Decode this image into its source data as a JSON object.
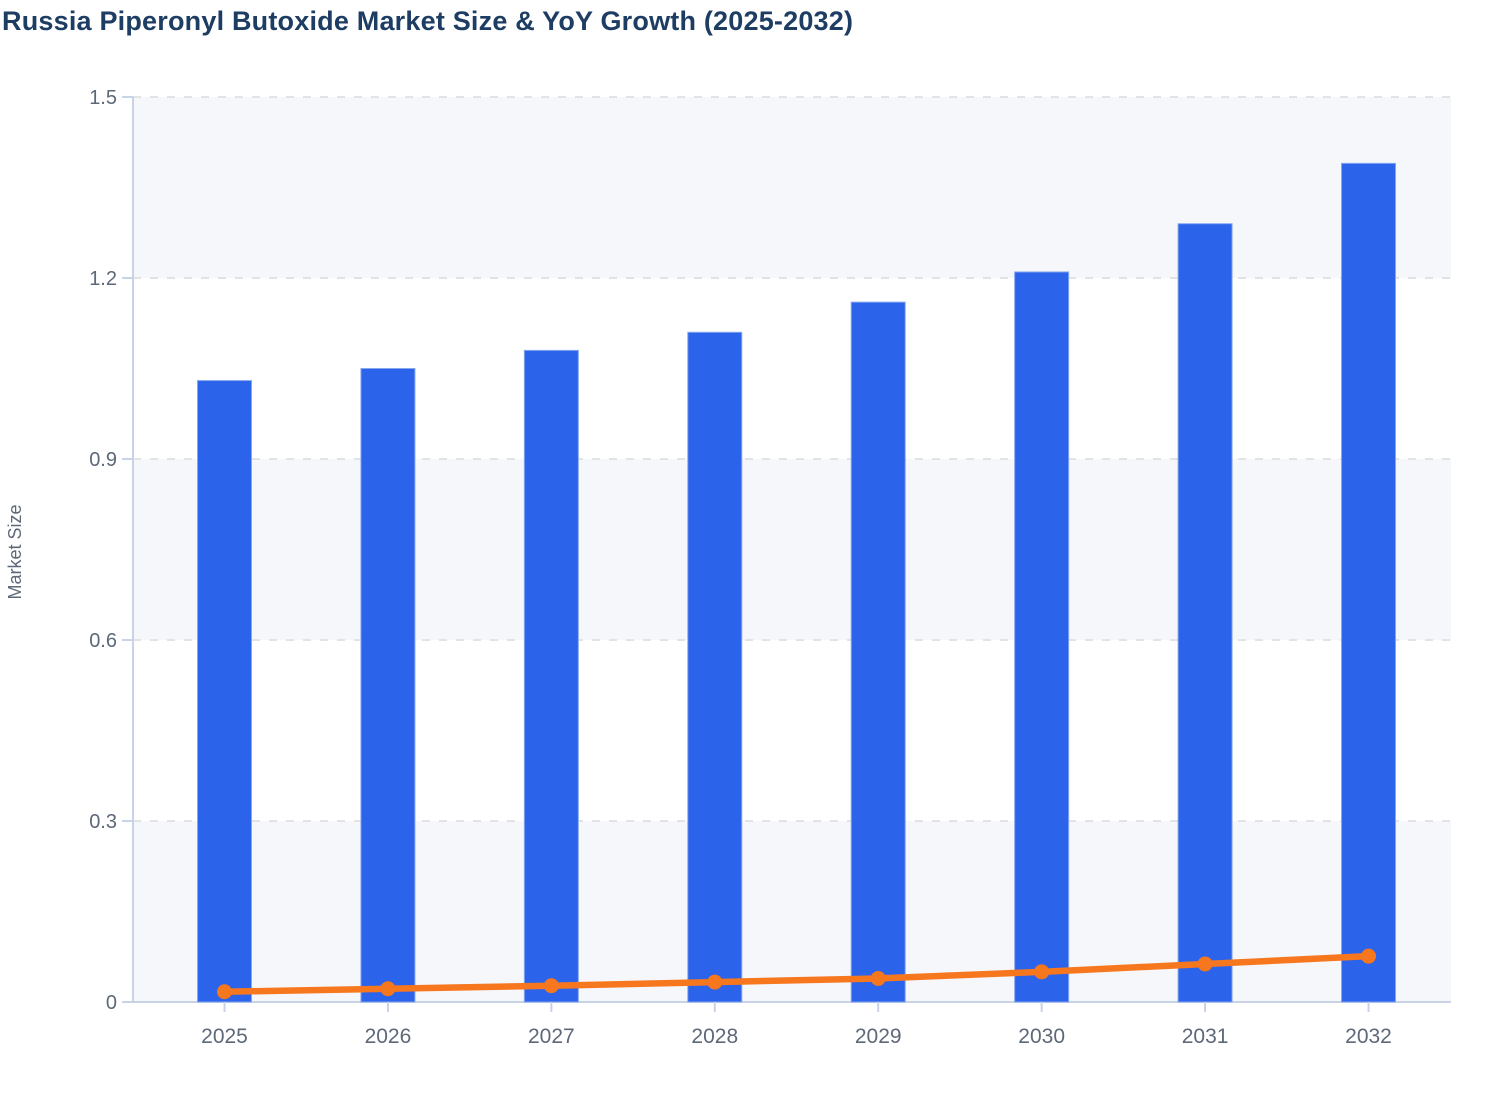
{
  "chart_data": {
    "type": "combo-bar-line",
    "title": "Russia Piperonyl Butoxide Market Size & YoY Growth (2025-2032)",
    "ylabel": "Market Size",
    "xlabel": "",
    "categories": [
      "2025",
      "2026",
      "2027",
      "2028",
      "2029",
      "2030",
      "2031",
      "2032"
    ],
    "series": [
      {
        "name": "Market Size",
        "type": "bar",
        "values": [
          1.03,
          1.05,
          1.08,
          1.11,
          1.16,
          1.21,
          1.29,
          1.39
        ]
      },
      {
        "name": "YoY Growth",
        "type": "line",
        "values": [
          0.017,
          0.022,
          0.027,
          0.033,
          0.039,
          0.05,
          0.063,
          0.076
        ]
      }
    ],
    "ylim": [
      0,
      1.5
    ],
    "y_ticks": [
      "0",
      "0.3",
      "0.6",
      "0.9",
      "1.2",
      "1.5"
    ],
    "grid": "horizontal-dashed",
    "legend_position": "none",
    "plot_background": "alternating-horizontal-bands"
  },
  "colors": {
    "title_text": "#1d3d63",
    "axis_label_text": "#5d6878",
    "axis_line": "#c9d3e8",
    "gridline": "#e1e3e6",
    "band_fill": "#f6f7fa",
    "bar_fill": "#2b63ea",
    "bar_stroke": "#86a7f0",
    "line_color": "#f7771f",
    "page_background": "#ffffff"
  }
}
